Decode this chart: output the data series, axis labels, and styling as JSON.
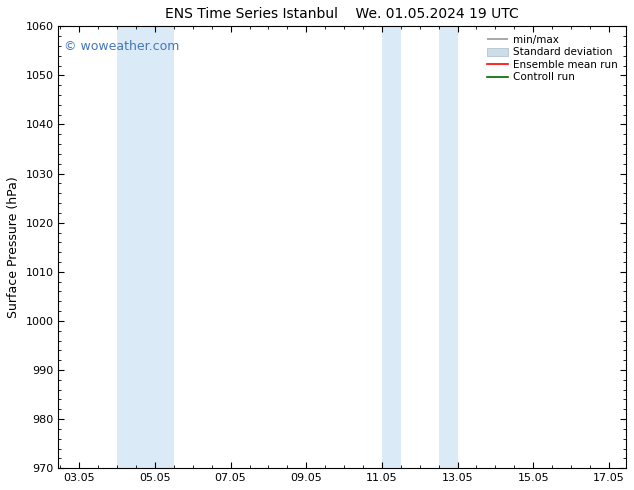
{
  "title_left": "ENS Time Series Istanbul",
  "title_right": "We. 01.05.2024 19 UTC",
  "ylabel": "Surface Pressure (hPa)",
  "ylim": [
    970,
    1060
  ],
  "yticks": [
    970,
    980,
    990,
    1000,
    1010,
    1020,
    1030,
    1040,
    1050,
    1060
  ],
  "xlim": [
    2.5,
    17.5
  ],
  "xticks": [
    3.05,
    5.05,
    7.05,
    9.05,
    11.05,
    13.05,
    15.05,
    17.05
  ],
  "xticklabels": [
    "03.05",
    "05.05",
    "07.05",
    "09.05",
    "11.05",
    "13.05",
    "15.05",
    "17.05"
  ],
  "shaded_regions": [
    {
      "xmin": 4.05,
      "xmax": 5.55,
      "color": "#dbeaf7"
    },
    {
      "xmin": 11.05,
      "xmax": 11.55,
      "color": "#dbeaf7"
    },
    {
      "xmin": 12.55,
      "xmax": 13.05,
      "color": "#dbeaf7"
    }
  ],
  "watermark_text": "© woweather.com",
  "watermark_color": "#4477bb",
  "bg_color": "#ffffff",
  "legend_labels": [
    "min/max",
    "Standard deviation",
    "Ensemble mean run",
    "Controll run"
  ],
  "legend_colors": [
    "#aaaaaa",
    "#ccdde8",
    "red",
    "green"
  ],
  "font_family": "DejaVu Sans",
  "font_size_title": 10,
  "font_size_axis": 9,
  "font_size_tick": 8,
  "font_size_legend": 7.5,
  "font_size_watermark": 9
}
